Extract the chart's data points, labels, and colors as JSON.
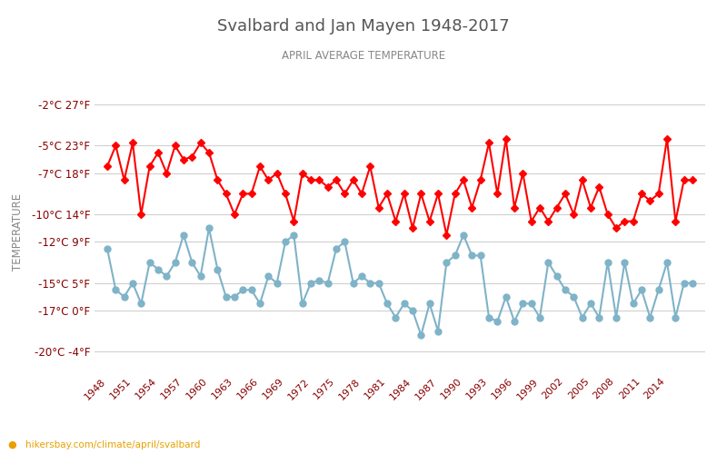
{
  "title": "Svalbard and Jan Mayen 1948-2017",
  "subtitle": "APRIL AVERAGE TEMPERATURE",
  "ylabel": "TEMPERATURE",
  "xlabel_url": "hikersbay.com/climate/april/svalbard",
  "bg_color": "#ffffff",
  "plot_bg_color": "#ffffff",
  "grid_color": "#d0d0d0",
  "years": [
    1948,
    1949,
    1950,
    1951,
    1952,
    1953,
    1954,
    1955,
    1956,
    1957,
    1958,
    1959,
    1960,
    1961,
    1962,
    1963,
    1964,
    1965,
    1966,
    1967,
    1968,
    1969,
    1970,
    1971,
    1972,
    1973,
    1974,
    1975,
    1976,
    1977,
    1978,
    1979,
    1980,
    1981,
    1982,
    1983,
    1984,
    1985,
    1986,
    1987,
    1988,
    1989,
    1990,
    1991,
    1992,
    1993,
    1994,
    1995,
    1996,
    1997,
    1998,
    1999,
    2000,
    2001,
    2002,
    2003,
    2004,
    2005,
    2006,
    2007,
    2008,
    2009,
    2010,
    2011,
    2012,
    2013,
    2014,
    2015,
    2016,
    2017
  ],
  "day_temps": [
    -6.5,
    -5.0,
    -7.5,
    -4.8,
    -10.0,
    -6.5,
    -5.5,
    -7.0,
    -5.0,
    -6.0,
    -5.8,
    -4.8,
    -5.5,
    -7.5,
    -8.5,
    -10.0,
    -8.5,
    -8.5,
    -6.5,
    -7.5,
    -7.0,
    -8.5,
    -10.5,
    -7.0,
    -7.5,
    -7.5,
    -8.0,
    -7.5,
    -8.5,
    -7.5,
    -8.5,
    -6.5,
    -9.5,
    -8.5,
    -10.5,
    -8.5,
    -11.0,
    -8.5,
    -10.5,
    -8.5,
    -11.5,
    -8.5,
    -7.5,
    -9.5,
    -7.5,
    -4.8,
    -8.5,
    -4.5,
    -9.5,
    -7.0,
    -10.5,
    -9.5,
    -10.5,
    -9.5,
    -8.5,
    -10.0,
    -7.5,
    -9.5,
    -8.0,
    -10.0,
    -11.0,
    -10.5,
    -10.5,
    -8.5,
    -9.0,
    -8.5,
    -4.5,
    -10.5,
    -7.5,
    -7.5
  ],
  "night_temps": [
    -12.5,
    -15.5,
    -16.0,
    -15.0,
    -16.5,
    -13.5,
    -14.0,
    -14.5,
    -13.5,
    -11.5,
    -13.5,
    -14.5,
    -11.0,
    -14.0,
    -16.0,
    -16.0,
    -15.5,
    -15.5,
    -16.5,
    -14.5,
    -15.0,
    -12.0,
    -11.5,
    -16.5,
    -15.0,
    -14.8,
    -15.0,
    -12.5,
    -12.0,
    -15.0,
    -14.5,
    -15.0,
    -15.0,
    -16.5,
    -17.5,
    -16.5,
    -17.0,
    -18.8,
    -16.5,
    -18.5,
    -13.5,
    -13.0,
    -11.5,
    -13.0,
    -13.0,
    -17.5,
    -17.8,
    -16.0,
    -17.8,
    -16.5,
    -16.5,
    -17.5,
    -13.5,
    -14.5,
    -15.5,
    -16.0,
    -17.5,
    -16.5,
    -17.5,
    -13.5,
    -17.5,
    -13.5,
    -16.5,
    -15.5,
    -17.5,
    -15.5,
    -13.5,
    -17.5,
    -15.0,
    -15.0
  ],
  "day_color": "#ff0000",
  "night_color": "#7fb3c8",
  "day_linewidth": 1.5,
  "night_linewidth": 1.5,
  "marker_size_day": 4,
  "marker_size_night": 5,
  "yticks_celsius": [
    -2,
    -5,
    -7,
    -10,
    -12,
    -15,
    -17,
    -20
  ],
  "yticks_fahrenheit": [
    27,
    23,
    18,
    14,
    9,
    5,
    0,
    -4
  ],
  "ylim": [
    -21.5,
    -1.0
  ],
  "xlim": [
    1946.5,
    2018.5
  ],
  "xtick_years": [
    1948,
    1951,
    1954,
    1957,
    1960,
    1963,
    1966,
    1969,
    1972,
    1975,
    1978,
    1981,
    1984,
    1987,
    1990,
    1993,
    1996,
    1999,
    2002,
    2005,
    2008,
    2011,
    2014
  ],
  "title_color": "#555555",
  "subtitle_color": "#888888",
  "ylabel_color": "#888888",
  "tick_color": "#880000",
  "url_color": "#e8a000",
  "url_dot_color": "#e8a000"
}
